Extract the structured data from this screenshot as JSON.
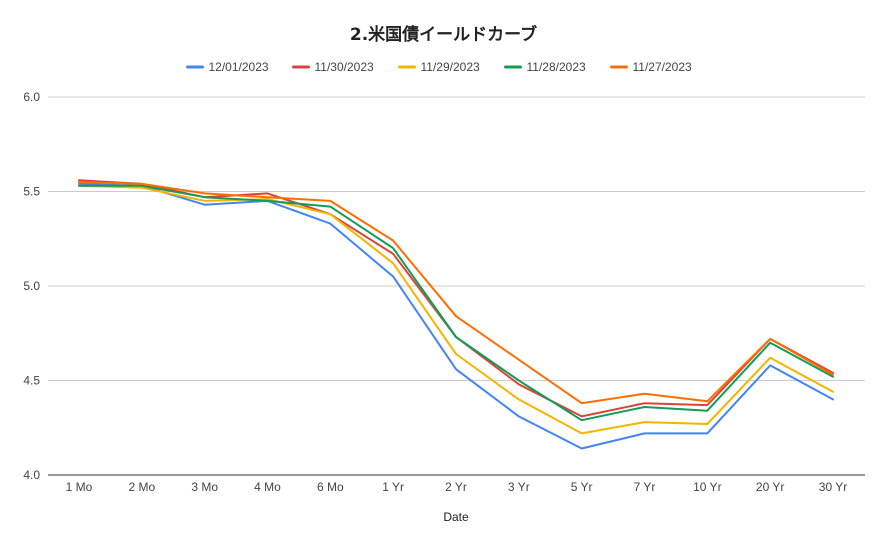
{
  "chart_data": {
    "type": "line",
    "title": "2.米国債イールドカーブ",
    "xlabel": "Date",
    "ylabel": "",
    "categories": [
      "1 Mo",
      "2 Mo",
      "3 Mo",
      "4 Mo",
      "6 Mo",
      "1 Yr",
      "2 Yr",
      "3 Yr",
      "5 Yr",
      "7 Yr",
      "10 Yr",
      "20 Yr",
      "30 Yr"
    ],
    "ylim": [
      4.0,
      6.0
    ],
    "yticks": [
      "4.0",
      "4.5",
      "5.0",
      "5.5",
      "6.0"
    ],
    "grid": true,
    "legend_position": "top",
    "series": [
      {
        "name": "12/01/2023",
        "color": "#4285F4",
        "values": [
          5.54,
          5.53,
          5.43,
          5.45,
          5.33,
          5.05,
          4.56,
          4.31,
          4.14,
          4.22,
          4.22,
          4.58,
          4.4
        ]
      },
      {
        "name": "11/30/2023",
        "color": "#DB4437",
        "values": [
          5.56,
          5.54,
          5.47,
          5.49,
          5.38,
          5.17,
          4.73,
          4.48,
          4.31,
          4.38,
          4.37,
          4.72,
          4.54
        ]
      },
      {
        "name": "11/29/2023",
        "color": "#F4B400",
        "values": [
          5.53,
          5.52,
          5.45,
          5.46,
          5.38,
          5.12,
          4.64,
          4.4,
          4.22,
          4.28,
          4.27,
          4.62,
          4.44
        ]
      },
      {
        "name": "11/28/2023",
        "color": "#0F9D58",
        "values": [
          5.53,
          5.53,
          5.47,
          5.45,
          5.42,
          5.2,
          4.73,
          4.5,
          4.29,
          4.36,
          4.34,
          4.7,
          4.52
        ]
      },
      {
        "name": "11/27/2023",
        "color": "#FF6D00",
        "values": [
          5.55,
          5.54,
          5.49,
          5.47,
          5.45,
          5.24,
          4.84,
          4.61,
          4.38,
          4.43,
          4.39,
          4.72,
          4.53
        ]
      }
    ]
  }
}
